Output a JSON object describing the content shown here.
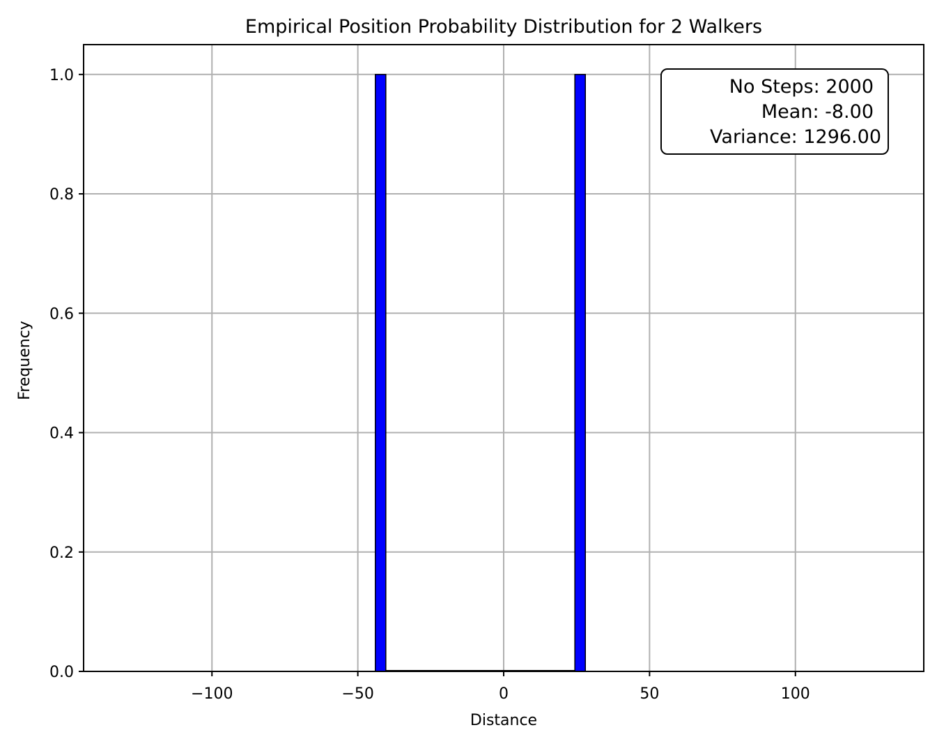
{
  "chart_data": {
    "type": "bar",
    "title": "Empirical Position Probability Distribution for 2 Walkers",
    "xlabel": "Distance",
    "ylabel": "Frequency",
    "xlim": [
      -144,
      144
    ],
    "ylim": [
      0,
      1.05
    ],
    "xticks": [
      -100,
      -50,
      0,
      50,
      100
    ],
    "xtick_labels": [
      "−100",
      "−50",
      "0",
      "50",
      "100"
    ],
    "yticks": [
      0,
      0.2,
      0.4,
      0.6,
      0.8,
      1.0
    ],
    "ytick_labels": [
      "0.0",
      "0.2",
      "0.4",
      "0.6",
      "0.8",
      "1.0"
    ],
    "grid": true,
    "bins": [
      {
        "x0": -44,
        "x1": -40.4,
        "value": 1.0
      },
      {
        "x0": 24.4,
        "x1": 28,
        "value": 1.0
      }
    ],
    "baseline_segment": [
      -40.4,
      24.4
    ],
    "bar_color": "#0000ff",
    "edge_color": "#000000",
    "stats_box": {
      "lines": [
        "No Steps: 2000",
        "Mean: -8.00",
        "Variance: 1296.00"
      ],
      "placement": "top-right"
    }
  }
}
